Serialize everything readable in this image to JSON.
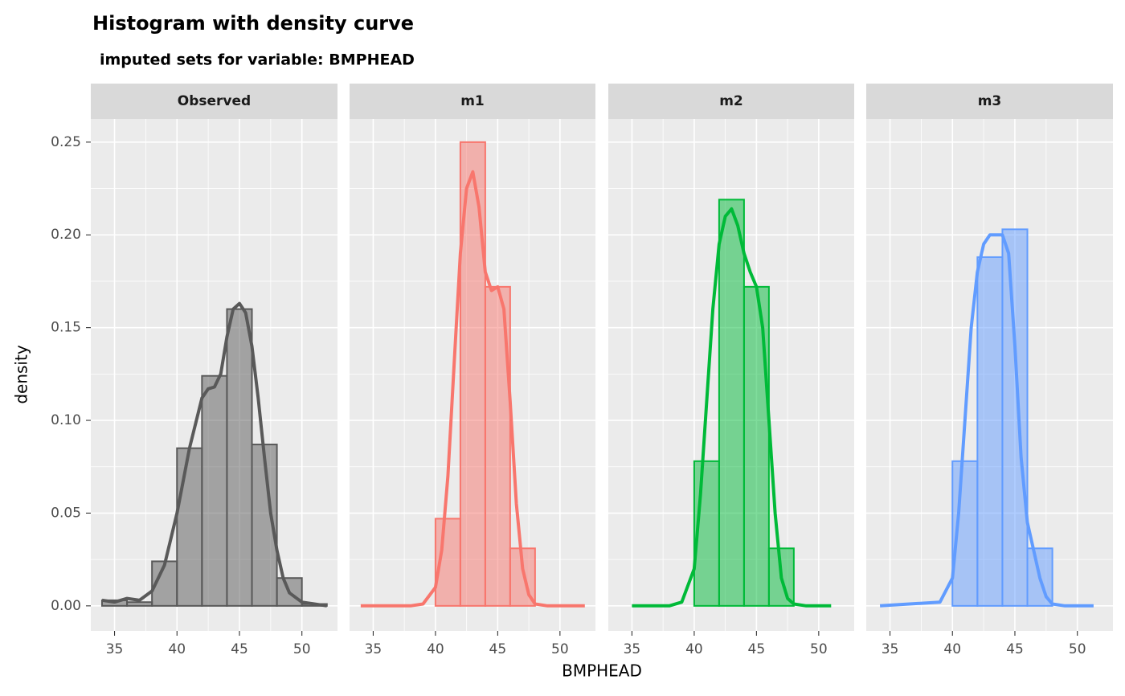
{
  "chart_data": {
    "type": "histogram",
    "title": "Histogram with density curve",
    "subtitle": "imputed sets for variable:  BMPHEAD",
    "xlabel": "BMPHEAD",
    "ylabel": "density",
    "xlim": [
      33.1,
      52.85
    ],
    "ylim": [
      -0.0135,
      0.2625
    ],
    "xticks": [
      35,
      40,
      45,
      50
    ],
    "minor_xticks": [
      37.5,
      42.5,
      47.5
    ],
    "yticks": [
      {
        "value": 0,
        "label": "0.00"
      },
      {
        "value": 0.05,
        "label": "0.05"
      },
      {
        "value": 0.1,
        "label": "0.10"
      },
      {
        "value": 0.15,
        "label": "0.15"
      },
      {
        "value": 0.2,
        "label": "0.20"
      },
      {
        "value": 0.25,
        "label": "0.25"
      }
    ],
    "minor_yticks": [
      0.025,
      0.075,
      0.125,
      0.175,
      0.225
    ],
    "grid": true,
    "panels": [
      {
        "name": "Observed",
        "color": "#595959",
        "bins": [
          34,
          36,
          38,
          40,
          42,
          44,
          46,
          48,
          50,
          52
        ],
        "values": [
          0.003,
          0.002,
          0.024,
          0.085,
          0.124,
          0.16,
          0.087,
          0.015,
          0.001
        ],
        "density_x": [
          34,
          35,
          36,
          37,
          38,
          39,
          40,
          41,
          42,
          42.5,
          43,
          43.5,
          44,
          44.5,
          45,
          45.5,
          46,
          46.5,
          47,
          47.5,
          48,
          48.5,
          49,
          50,
          51,
          52
        ],
        "density_values": [
          0.003,
          0.002,
          0.004,
          0.003,
          0.008,
          0.022,
          0.05,
          0.085,
          0.112,
          0.117,
          0.118,
          0.125,
          0.145,
          0.16,
          0.163,
          0.158,
          0.14,
          0.112,
          0.08,
          0.05,
          0.03,
          0.015,
          0.007,
          0.002,
          0.001,
          0
        ]
      },
      {
        "name": "m1",
        "color": "#F8766D",
        "bins": [
          40,
          42,
          44,
          46,
          48
        ],
        "values": [
          0.047,
          0.25,
          0.172,
          0.031
        ],
        "density_x": [
          34,
          38,
          39,
          40,
          40.5,
          41,
          41.5,
          42,
          42.5,
          43,
          43.5,
          44,
          44.5,
          45,
          45.5,
          46,
          46.5,
          47,
          47.5,
          48,
          49,
          52
        ],
        "density_values": [
          0,
          0,
          0.001,
          0.01,
          0.03,
          0.07,
          0.13,
          0.19,
          0.225,
          0.234,
          0.215,
          0.18,
          0.17,
          0.172,
          0.16,
          0.11,
          0.055,
          0.02,
          0.006,
          0.001,
          0,
          0
        ]
      },
      {
        "name": "m2",
        "color": "#00BA38",
        "bins": [
          40,
          42,
          44,
          46,
          48
        ],
        "values": [
          0.078,
          0.219,
          0.172,
          0.031
        ],
        "density_x": [
          35,
          38,
          39,
          40,
          40.5,
          41,
          41.5,
          42,
          42.5,
          43,
          43.5,
          44,
          44.5,
          45,
          45.5,
          46,
          46.5,
          47,
          47.5,
          48,
          49,
          51
        ],
        "density_values": [
          0,
          0,
          0.002,
          0.02,
          0.06,
          0.11,
          0.16,
          0.195,
          0.21,
          0.214,
          0.205,
          0.19,
          0.18,
          0.172,
          0.15,
          0.1,
          0.05,
          0.015,
          0.004,
          0.001,
          0,
          0
        ]
      },
      {
        "name": "m3",
        "color": "#619CFF",
        "bins": [
          40,
          42,
          44,
          46,
          48
        ],
        "values": [
          0.078,
          0.188,
          0.203,
          0.031
        ],
        "density_x": [
          34.2,
          39,
          40,
          40.5,
          41,
          41.5,
          42,
          42.5,
          43,
          43.5,
          44,
          44.5,
          45,
          45.5,
          46,
          46.5,
          47,
          47.5,
          48,
          49,
          51.3
        ],
        "density_values": [
          0,
          0.002,
          0.015,
          0.05,
          0.1,
          0.15,
          0.18,
          0.195,
          0.2,
          0.2,
          0.2,
          0.19,
          0.14,
          0.08,
          0.045,
          0.03,
          0.015,
          0.005,
          0.001,
          0,
          0
        ]
      }
    ]
  }
}
